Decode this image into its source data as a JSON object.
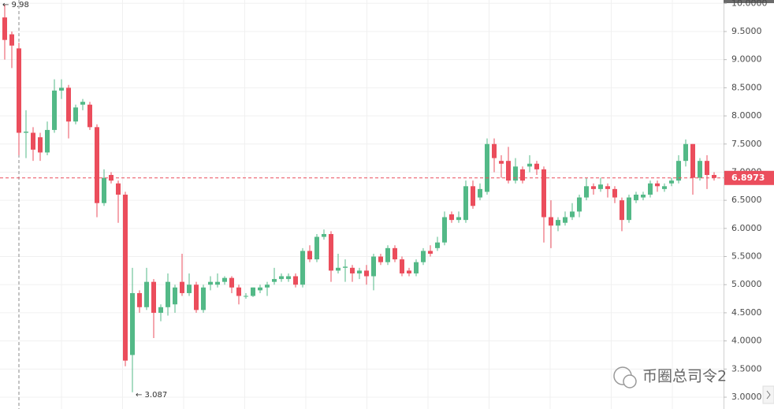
{
  "chart_data": {
    "type": "candlestick",
    "open": [
      9.75,
      9.45,
      9.2,
      7.7,
      7.7,
      7.62,
      7.35,
      7.75,
      8.45,
      8.5,
      7.9,
      8.2,
      8.2,
      7.8,
      6.45,
      6.95,
      6.8,
      6.6,
      3.75,
      4.85,
      4.6,
      5.05,
      4.5,
      4.6,
      4.65,
      5.05,
      4.85,
      5.0,
      4.55,
      5.0,
      5.0,
      5.05,
      5.12,
      4.95,
      4.8,
      4.8,
      4.9,
      4.95,
      5.05,
      5.1,
      5.1,
      5.15,
      5.0,
      5.6,
      5.45,
      5.85,
      5.9,
      5.25,
      5.3,
      5.3,
      5.2,
      5.25,
      5.15,
      5.5,
      5.4,
      5.65,
      5.45,
      5.25,
      5.2,
      5.4,
      5.6,
      5.65,
      5.75,
      6.25,
      6.15,
      6.15,
      6.75,
      6.55,
      6.65,
      7.5,
      7.2,
      7.2,
      6.85,
      7.05,
      7.1,
      7.15,
      7.05,
      6.2,
      6.05,
      6.1,
      6.2,
      6.3,
      6.55,
      6.75,
      6.7,
      6.75,
      6.7,
      6.5,
      6.15,
      6.5,
      6.55,
      6.6,
      6.8,
      6.7,
      6.8,
      6.85,
      7.2,
      7.5,
      6.9,
      7.2,
      6.95
    ],
    "high": [
      9.98,
      9.5,
      9.3,
      8.1,
      7.8,
      7.7,
      7.9,
      8.65,
      8.65,
      8.55,
      8.2,
      8.3,
      8.25,
      7.85,
      7.05,
      7.0,
      6.85,
      6.65,
      5.3,
      4.9,
      5.3,
      5.1,
      4.65,
      5.2,
      5.0,
      5.55,
      5.2,
      5.05,
      5.0,
      5.15,
      5.2,
      5.15,
      5.15,
      5.0,
      4.85,
      4.95,
      5.0,
      5.05,
      5.3,
      5.2,
      5.2,
      5.2,
      5.65,
      5.7,
      5.9,
      5.98,
      5.95,
      5.55,
      5.45,
      5.35,
      5.3,
      5.35,
      5.55,
      5.55,
      5.7,
      5.7,
      5.5,
      5.3,
      5.45,
      5.65,
      5.7,
      5.85,
      6.3,
      6.3,
      6.3,
      6.85,
      6.85,
      6.8,
      7.6,
      7.6,
      7.3,
      7.45,
      7.25,
      7.1,
      7.3,
      7.2,
      7.1,
      6.5,
      6.2,
      6.3,
      6.45,
      6.6,
      6.9,
      6.8,
      6.9,
      6.8,
      6.75,
      6.55,
      6.6,
      6.65,
      6.65,
      6.85,
      6.85,
      6.8,
      6.9,
      7.3,
      7.58,
      7.5,
      7.25,
      7.3,
      7.0
    ],
    "low": [
      9.0,
      8.85,
      7.3,
      7.25,
      7.2,
      7.2,
      7.3,
      7.7,
      8.3,
      7.6,
      7.85,
      8.1,
      7.75,
      6.2,
      6.4,
      6.8,
      6.1,
      3.55,
      3.087,
      4.5,
      4.55,
      4.05,
      4.35,
      4.45,
      4.5,
      4.8,
      4.8,
      4.5,
      4.5,
      4.9,
      4.95,
      5.0,
      4.85,
      4.65,
      4.75,
      4.78,
      4.85,
      4.8,
      5.0,
      5.05,
      5.05,
      4.95,
      4.95,
      5.4,
      5.4,
      5.8,
      5.05,
      5.2,
      5.05,
      5.05,
      5.1,
      5.0,
      4.9,
      5.35,
      5.35,
      5.4,
      5.15,
      5.15,
      5.15,
      5.35,
      5.5,
      5.6,
      5.7,
      6.1,
      6.1,
      6.1,
      6.35,
      6.5,
      6.6,
      7.0,
      6.9,
      6.8,
      6.8,
      6.8,
      7.0,
      6.95,
      5.75,
      5.65,
      5.95,
      6.05,
      6.15,
      6.2,
      6.5,
      6.6,
      6.65,
      6.55,
      6.45,
      5.95,
      6.1,
      6.45,
      6.5,
      6.55,
      6.65,
      6.65,
      6.75,
      6.8,
      7.1,
      6.6,
      6.85,
      6.7,
      6.85
    ],
    "close": [
      9.35,
      9.25,
      7.7,
      7.72,
      7.4,
      7.35,
      7.75,
      8.45,
      8.5,
      7.9,
      8.15,
      8.25,
      7.8,
      6.45,
      6.9,
      6.85,
      6.6,
      3.65,
      4.85,
      4.6,
      5.05,
      4.5,
      4.6,
      5.05,
      4.95,
      4.85,
      5.0,
      4.55,
      4.95,
      5.05,
      5.05,
      5.12,
      4.95,
      4.8,
      4.8,
      4.95,
      4.95,
      5.0,
      5.1,
      5.15,
      5.15,
      5.0,
      5.6,
      5.45,
      5.85,
      5.9,
      5.25,
      5.3,
      5.32,
      5.2,
      5.25,
      5.15,
      5.5,
      5.4,
      5.65,
      5.45,
      5.2,
      5.2,
      5.4,
      5.6,
      5.55,
      5.75,
      6.2,
      6.15,
      6.2,
      6.75,
      6.4,
      6.7,
      7.5,
      7.25,
      7.15,
      6.85,
      7.1,
      6.85,
      7.15,
      7.05,
      6.2,
      6.05,
      6.15,
      6.2,
      6.3,
      6.55,
      6.75,
      6.7,
      6.78,
      6.7,
      6.55,
      6.15,
      6.55,
      6.6,
      6.6,
      6.8,
      6.75,
      6.75,
      6.85,
      7.2,
      7.5,
      6.9,
      7.2,
      6.95,
      6.8973
    ],
    "up_color": "#53b987",
    "down_color": "#eb4d5c",
    "ylim": [
      2.79,
      10.06
    ],
    "yticks": [
      {
        "value": 3,
        "label": "3.0000"
      },
      {
        "value": 3.5,
        "label": "3.5000"
      },
      {
        "value": 4,
        "label": "4.0000"
      },
      {
        "value": 4.5,
        "label": "4.5000"
      },
      {
        "value": 5,
        "label": "5.0000"
      },
      {
        "value": 5.5,
        "label": "5.5000"
      },
      {
        "value": 6,
        "label": "6.0000"
      },
      {
        "value": 6.5,
        "label": "6.5000"
      },
      {
        "value": 7,
        "label": "7.0000"
      },
      {
        "value": 7.5,
        "label": "7.5000"
      },
      {
        "value": 8,
        "label": "8.0000"
      },
      {
        "value": 8.5,
        "label": "8.5000"
      },
      {
        "value": 9,
        "label": "9.0000"
      },
      {
        "value": 9.5,
        "label": "9.5000"
      },
      {
        "value": 10,
        "label": "10.0000"
      }
    ],
    "grid": true,
    "high_label": "← 9.98",
    "low_label": "← 3.087",
    "watermark": "币圈总司令2"
  }
}
